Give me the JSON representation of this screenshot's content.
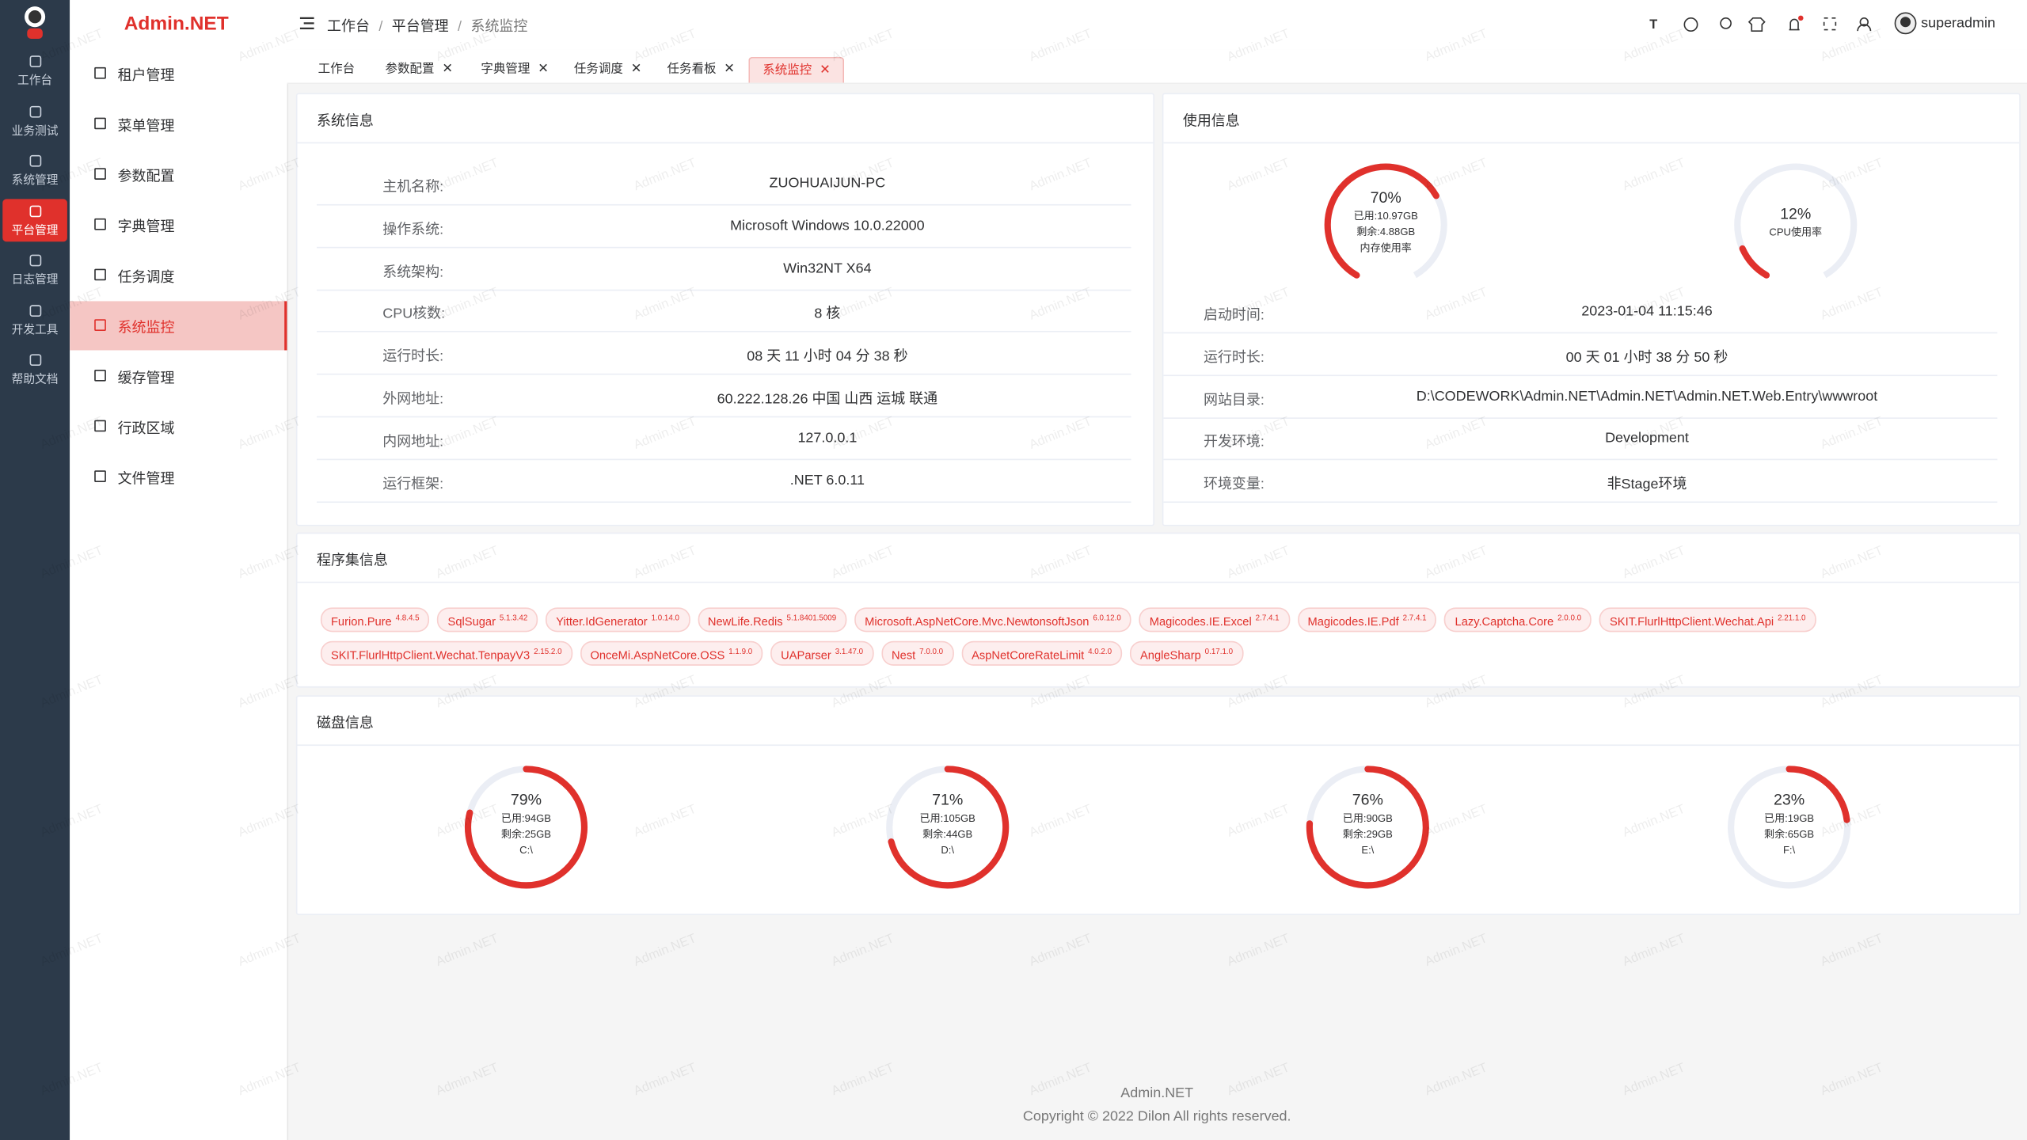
{
  "brand": "Admin.NET",
  "watermark": "Admin.NET",
  "nav": {
    "active": 3,
    "items": [
      "工作台",
      "业务测试",
      "系统管理",
      "平台管理",
      "日志管理",
      "开发工具",
      "帮助文档"
    ]
  },
  "submenu": {
    "active": 5,
    "items": [
      "租户管理",
      "菜单管理",
      "参数配置",
      "字典管理",
      "任务调度",
      "系统监控",
      "缓存管理",
      "行政区域",
      "文件管理"
    ]
  },
  "breadcrumb": [
    "工作台",
    "平台管理",
    "系统监控"
  ],
  "user": "superadmin",
  "tabs": {
    "active": 5,
    "items": [
      "工作台",
      "参数配置",
      "字典管理",
      "任务调度",
      "任务看板",
      "系统监控"
    ]
  },
  "system_info": {
    "title": "系统信息",
    "rows": [
      [
        "主机名称:",
        "ZUOHUAIJUN-PC"
      ],
      [
        "操作系统:",
        "Microsoft Windows 10.0.22000"
      ],
      [
        "系统架构:",
        "Win32NT X64"
      ],
      [
        "CPU核数:",
        "8 核"
      ],
      [
        "运行时长:",
        "08 天 11 小时 04 分 38 秒"
      ],
      [
        "外网地址:",
        "60.222.128.26 中国 山西 运城 联通"
      ],
      [
        "内网地址:",
        "127.0.0.1"
      ],
      [
        "运行框架:",
        ".NET 6.0.11"
      ]
    ]
  },
  "usage_info": {
    "title": "使用信息",
    "gauges": [
      {
        "percent": {
          "value": 70,
          "label": "70%"
        },
        "lines": [
          "已用:10.97GB",
          "剩余:4.88GB",
          "内存使用率"
        ]
      },
      {
        "percent": {
          "value": 12,
          "label": "12%"
        },
        "lines": [
          "CPU使用率"
        ]
      }
    ],
    "rows": [
      [
        "启动时间:",
        "2023-01-04 11:15:46"
      ],
      [
        "运行时长:",
        "00 天 01 小时 38 分 50 秒"
      ],
      [
        "网站目录:",
        "D:\\CODEWORK\\Admin.NET\\Admin.NET\\Admin.NET.Web.Entry\\wwwroot"
      ],
      [
        "开发环境:",
        "Development"
      ],
      [
        "环境变量:",
        "非Stage环境"
      ]
    ]
  },
  "assemblies": {
    "title": "程序集信息",
    "items": [
      {
        "name": "Furion.Pure",
        "version": "4.8.4.5"
      },
      {
        "name": "SqlSugar",
        "version": "5.1.3.42"
      },
      {
        "name": "Yitter.IdGenerator",
        "version": "1.0.14.0"
      },
      {
        "name": "NewLife.Redis",
        "version": "5.1.8401.5009"
      },
      {
        "name": "Microsoft.AspNetCore.Mvc.NewtonsoftJson",
        "version": "6.0.12.0"
      },
      {
        "name": "Magicodes.IE.Excel",
        "version": "2.7.4.1"
      },
      {
        "name": "Magicodes.IE.Pdf",
        "version": "2.7.4.1"
      },
      {
        "name": "Lazy.Captcha.Core",
        "version": "2.0.0.0"
      },
      {
        "name": "SKIT.FlurlHttpClient.Wechat.Api",
        "version": "2.21.1.0"
      },
      {
        "name": "SKIT.FlurlHttpClient.Wechat.TenpayV3",
        "version": "2.15.2.0"
      },
      {
        "name": "OnceMi.AspNetCore.OSS",
        "version": "1.1.9.0"
      },
      {
        "name": "UAParser",
        "version": "3.1.47.0"
      },
      {
        "name": "Nest",
        "version": "7.0.0.0"
      },
      {
        "name": "AspNetCoreRateLimit",
        "version": "4.0.2.0"
      },
      {
        "name": "AngleSharp",
        "version": "0.17.1.0"
      }
    ]
  },
  "disks": {
    "title": "磁盘信息",
    "items": [
      {
        "percent": {
          "value": 79,
          "label": "79%"
        },
        "lines": [
          "已用:94GB",
          "剩余:25GB",
          "C:\\"
        ]
      },
      {
        "percent": {
          "value": 71,
          "label": "71%"
        },
        "lines": [
          "已用:105GB",
          "剩余:44GB",
          "D:\\"
        ]
      },
      {
        "percent": {
          "value": 76,
          "label": "76%"
        },
        "lines": [
          "已用:90GB",
          "剩余:29GB",
          "E:\\"
        ]
      },
      {
        "percent": {
          "value": 23,
          "label": "23%"
        },
        "lines": [
          "已用:19GB",
          "剩余:65GB",
          "F:\\"
        ]
      }
    ]
  },
  "footer": [
    "Admin.NET",
    "Copyright © 2022 Dilon All rights reserved."
  ]
}
